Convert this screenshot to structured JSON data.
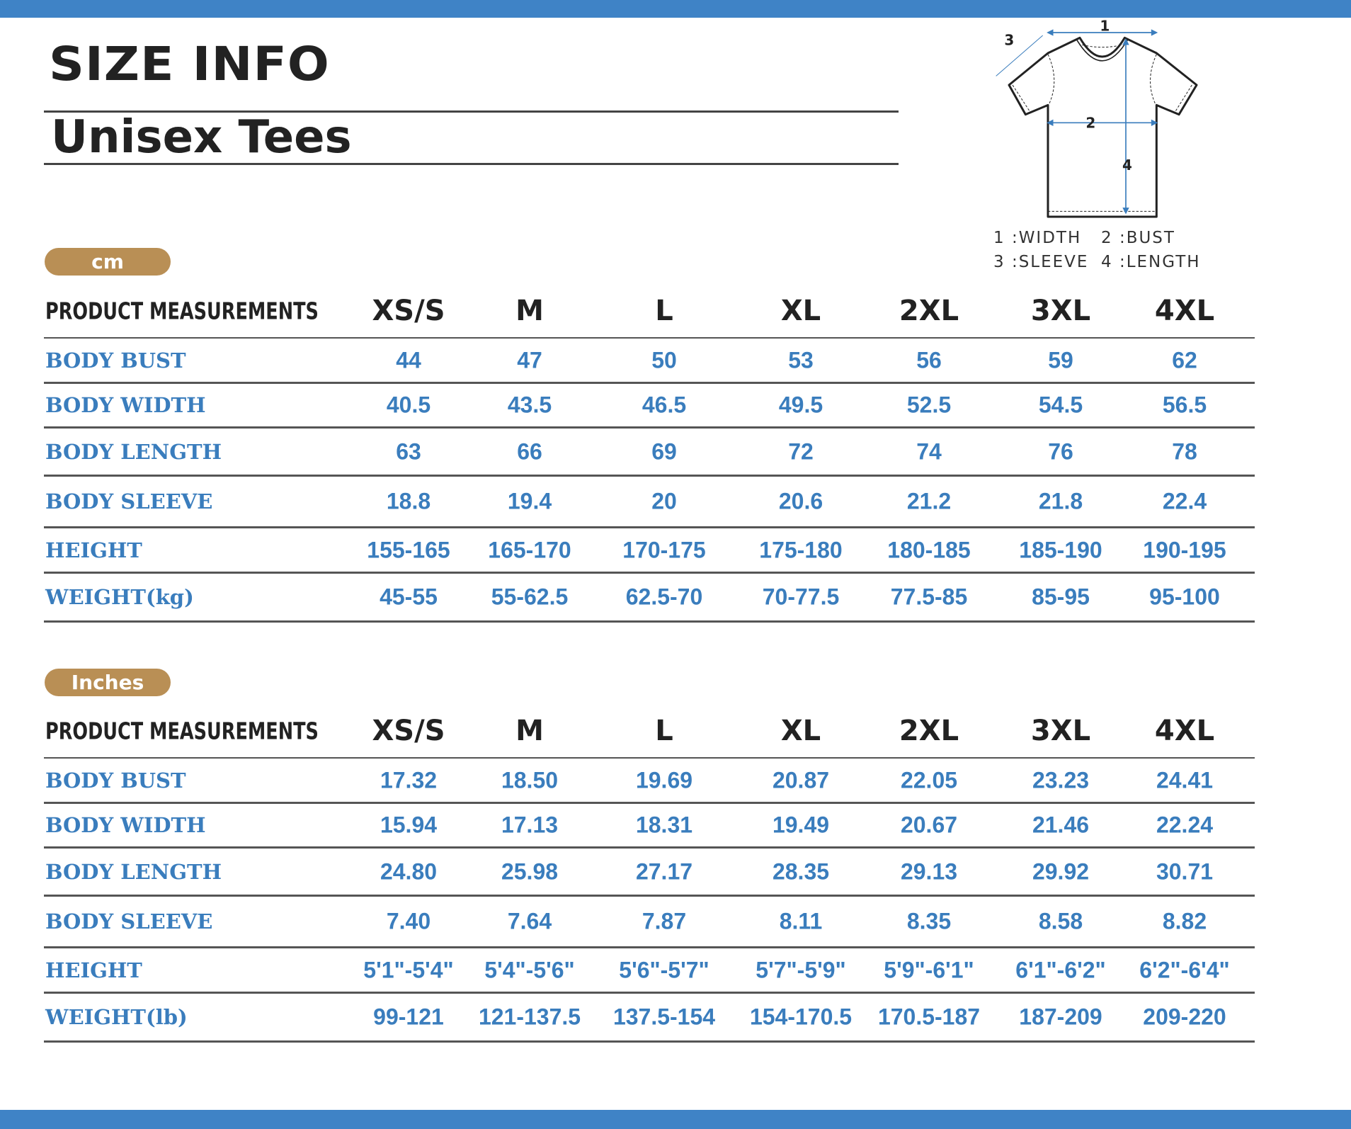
{
  "title": "SIZE INFO",
  "subtitle": "Unisex Tees",
  "colors": {
    "accent_bar": "#3f83c6",
    "value_text": "#3a7dbd",
    "pill": "#b98f55"
  },
  "diagram": {
    "labels": [
      "1",
      "2",
      "3",
      "4"
    ],
    "legend": [
      "1 :WIDTH",
      "2 :BUST",
      "3 :SLEEVE",
      "4 :LENGTH"
    ]
  },
  "tables": [
    {
      "unit": "cm",
      "header": "PRODUCT MEASUREMENTS",
      "sizes": [
        "XS/S",
        "M",
        "L",
        "XL",
        "2XL",
        "3XL",
        "4XL"
      ],
      "rows": [
        {
          "label": "BODY BUST",
          "values": [
            "44",
            "47",
            "50",
            "53",
            "56",
            "59",
            "62"
          ]
        },
        {
          "label": "BODY WIDTH",
          "values": [
            "40.5",
            "43.5",
            "46.5",
            "49.5",
            "52.5",
            "54.5",
            "56.5"
          ]
        },
        {
          "label": "BODY LENGTH",
          "values": [
            "63",
            "66",
            "69",
            "72",
            "74",
            "76",
            "78"
          ]
        },
        {
          "label": "BODY SLEEVE",
          "values": [
            "18.8",
            "19.4",
            "20",
            "20.6",
            "21.2",
            "21.8",
            "22.4"
          ]
        },
        {
          "label": "HEIGHT",
          "values": [
            "155-165",
            "165-170",
            "170-175",
            "175-180",
            "180-185",
            "185-190",
            "190-195"
          ]
        },
        {
          "label": "WEIGHT(kg)",
          "values": [
            "45-55",
            "55-62.5",
            "62.5-70",
            "70-77.5",
            "77.5-85",
            "85-95",
            "95-100"
          ]
        }
      ]
    },
    {
      "unit": "Inches",
      "header": "PRODUCT MEASUREMENTS",
      "sizes": [
        "XS/S",
        "M",
        "L",
        "XL",
        "2XL",
        "3XL",
        "4XL"
      ],
      "rows": [
        {
          "label": "BODY BUST",
          "values": [
            "17.32",
            "18.50",
            "19.69",
            "20.87",
            "22.05",
            "23.23",
            "24.41"
          ]
        },
        {
          "label": "BODY WIDTH",
          "values": [
            "15.94",
            "17.13",
            "18.31",
            "19.49",
            "20.67",
            "21.46",
            "22.24"
          ]
        },
        {
          "label": "BODY LENGTH",
          "values": [
            "24.80",
            "25.98",
            "27.17",
            "28.35",
            "29.13",
            "29.92",
            "30.71"
          ]
        },
        {
          "label": "BODY SLEEVE",
          "values": [
            "7.40",
            "7.64",
            "7.87",
            "8.11",
            "8.35",
            "8.58",
            "8.82"
          ]
        },
        {
          "label": "HEIGHT",
          "values": [
            "5'1\"-5'4\"",
            "5'4\"-5'6\"",
            "5'6\"-5'7\"",
            "5'7\"-5'9\"",
            "5'9\"-6'1\"",
            "6'1\"-6'2\"",
            "6'2\"-6'4\""
          ]
        },
        {
          "label": "WEIGHT(lb)",
          "values": [
            "99-121",
            "121-137.5",
            "137.5-154",
            "154-170.5",
            "170.5-187",
            "187-209",
            "209-220"
          ]
        }
      ]
    }
  ]
}
